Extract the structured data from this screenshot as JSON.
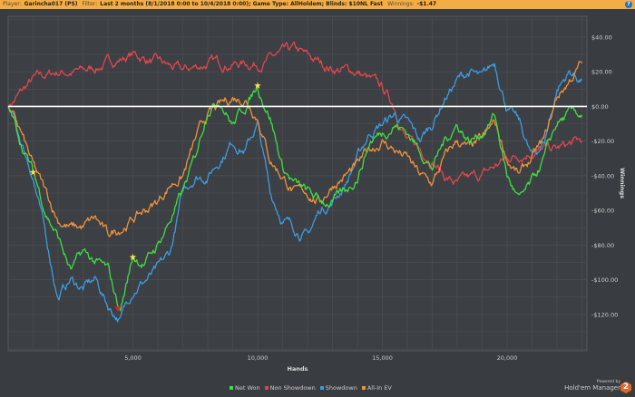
{
  "header": {
    "player_label": "Player:",
    "player": "Garincha017 (PS)",
    "filter_label": "Filter:",
    "filter": "Last 2 months (8/1/2018 0:00 to 10/4/2018 0:00); Game Type: AllHoldem; Blinds: $10NL Fast",
    "winnings_label": "Winnings:",
    "winnings": "-$1.47",
    "help": "?"
  },
  "brand": {
    "powered": "Powered by",
    "name": "Hold'em Manager",
    "logo": "2"
  },
  "chart_data": {
    "type": "line",
    "xlabel": "Hands",
    "ylabel": "Winnings",
    "xlim": [
      0,
      23200
    ],
    "ylim": [
      -141,
      52
    ],
    "xticks": [
      5000,
      10000,
      15000,
      20000
    ],
    "xtick_labels": [
      "5,000",
      "10,000",
      "15,000",
      "20,000"
    ],
    "yticks": [
      40,
      20,
      0,
      -20,
      -40,
      -60,
      -80,
      -100,
      -120
    ],
    "ytick_labels": [
      "$40.00",
      "$20.00",
      "$0.00",
      "-$20.00",
      "-$40.00",
      "-$60.00",
      "-$80.00",
      "-$100.00",
      "-$120.00"
    ],
    "grid": true,
    "legend_position": "bottom",
    "series": [
      {
        "name": "Non Showdown",
        "color": "#e0474c",
        "points": [
          [
            0,
            0
          ],
          [
            1000,
            15
          ],
          [
            2000,
            20
          ],
          [
            3000,
            20
          ],
          [
            4000,
            25
          ],
          [
            5000,
            30
          ],
          [
            6000,
            25
          ],
          [
            7000,
            20
          ],
          [
            8000,
            25
          ],
          [
            9000,
            25
          ],
          [
            10000,
            25
          ],
          [
            11000,
            30
          ],
          [
            11500,
            32
          ],
          [
            12000,
            28
          ],
          [
            12500,
            25
          ],
          [
            13000,
            22
          ],
          [
            14000,
            20
          ],
          [
            15000,
            10
          ],
          [
            15500,
            0
          ],
          [
            16000,
            -20
          ],
          [
            17000,
            -30
          ],
          [
            17500,
            -40
          ],
          [
            18000,
            -45
          ],
          [
            19000,
            -40
          ],
          [
            19500,
            -35
          ],
          [
            20000,
            -30
          ],
          [
            21000,
            -25
          ],
          [
            22000,
            -25
          ],
          [
            23000,
            -20
          ]
        ]
      },
      {
        "name": "Showdown",
        "color": "#3b9de0",
        "points": [
          [
            0,
            0
          ],
          [
            1000,
            -40
          ],
          [
            1500,
            -75
          ],
          [
            2000,
            -110
          ],
          [
            2500,
            -100
          ],
          [
            3000,
            -105
          ],
          [
            3500,
            -100
          ],
          [
            4000,
            -115
          ],
          [
            4500,
            -123
          ],
          [
            5000,
            -105
          ],
          [
            5500,
            -100
          ],
          [
            6000,
            -95
          ],
          [
            6500,
            -85
          ],
          [
            7000,
            -50
          ],
          [
            7500,
            -40
          ],
          [
            8000,
            -40
          ],
          [
            8500,
            -30
          ],
          [
            9000,
            -20
          ],
          [
            9500,
            -25
          ],
          [
            10000,
            -10
          ],
          [
            10500,
            -50
          ],
          [
            11000,
            -65
          ],
          [
            11500,
            -70
          ],
          [
            12000,
            -75
          ],
          [
            12500,
            -60
          ],
          [
            13000,
            -55
          ],
          [
            13500,
            -45
          ],
          [
            14000,
            -30
          ],
          [
            14500,
            -15
          ],
          [
            15000,
            -10
          ],
          [
            15500,
            -5
          ],
          [
            16000,
            -10
          ],
          [
            16500,
            -20
          ],
          [
            17000,
            -10
          ],
          [
            17500,
            5
          ],
          [
            18000,
            15
          ],
          [
            18500,
            20
          ],
          [
            19000,
            15
          ],
          [
            19500,
            25
          ],
          [
            20000,
            0
          ],
          [
            20500,
            -10
          ],
          [
            21000,
            -30
          ],
          [
            21500,
            -20
          ],
          [
            22000,
            10
          ],
          [
            22500,
            20
          ],
          [
            23000,
            15
          ]
        ]
      },
      {
        "name": "All-In EV",
        "color": "#f0923a",
        "points": [
          [
            0,
            0
          ],
          [
            500,
            -15
          ],
          [
            1000,
            -35
          ],
          [
            1500,
            -50
          ],
          [
            2000,
            -65
          ],
          [
            2500,
            -70
          ],
          [
            3000,
            -70
          ],
          [
            3500,
            -65
          ],
          [
            4000,
            -75
          ],
          [
            4500,
            -70
          ],
          [
            5000,
            -65
          ],
          [
            5500,
            -60
          ],
          [
            6000,
            -55
          ],
          [
            6500,
            -45
          ],
          [
            7000,
            -40
          ],
          [
            7500,
            -20
          ],
          [
            8000,
            -5
          ],
          [
            8500,
            0
          ],
          [
            9000,
            5
          ],
          [
            9500,
            5
          ],
          [
            10000,
            -5
          ],
          [
            10500,
            -30
          ],
          [
            11000,
            -40
          ],
          [
            11500,
            -50
          ],
          [
            12000,
            -50
          ],
          [
            12500,
            -55
          ],
          [
            13000,
            -45
          ],
          [
            13500,
            -40
          ],
          [
            14000,
            -35
          ],
          [
            14500,
            -25
          ],
          [
            15000,
            -20
          ],
          [
            15500,
            -25
          ],
          [
            16000,
            -30
          ],
          [
            16500,
            -40
          ],
          [
            17000,
            -45
          ],
          [
            17500,
            -30
          ],
          [
            18000,
            -20
          ],
          [
            18500,
            -25
          ],
          [
            19000,
            -20
          ],
          [
            19500,
            -10
          ],
          [
            20000,
            -30
          ],
          [
            20500,
            -40
          ],
          [
            21000,
            -30
          ],
          [
            21500,
            -20
          ],
          [
            22000,
            5
          ],
          [
            22500,
            15
          ],
          [
            23000,
            25
          ]
        ]
      },
      {
        "name": "Net Won",
        "color": "#3fe03f",
        "points": [
          [
            0,
            0
          ],
          [
            500,
            -20
          ],
          [
            1000,
            -38
          ],
          [
            1500,
            -60
          ],
          [
            2000,
            -75
          ],
          [
            2500,
            -95
          ],
          [
            3000,
            -85
          ],
          [
            3500,
            -90
          ],
          [
            4000,
            -95
          ],
          [
            4300,
            -110
          ],
          [
            4500,
            -117
          ],
          [
            5000,
            -87
          ],
          [
            5500,
            -90
          ],
          [
            6000,
            -80
          ],
          [
            6500,
            -65
          ],
          [
            7000,
            -50
          ],
          [
            7500,
            -30
          ],
          [
            8000,
            0
          ],
          [
            8500,
            5
          ],
          [
            9000,
            -10
          ],
          [
            9500,
            0
          ],
          [
            10000,
            12
          ],
          [
            10500,
            -5
          ],
          [
            11000,
            -35
          ],
          [
            11500,
            -45
          ],
          [
            12000,
            -50
          ],
          [
            12500,
            -55
          ],
          [
            13000,
            -55
          ],
          [
            13500,
            -50
          ],
          [
            14000,
            -40
          ],
          [
            14500,
            -20
          ],
          [
            15000,
            -15
          ],
          [
            15500,
            -10
          ],
          [
            16000,
            -15
          ],
          [
            16500,
            -25
          ],
          [
            17000,
            -35
          ],
          [
            17500,
            -20
          ],
          [
            18000,
            -10
          ],
          [
            18500,
            -20
          ],
          [
            19000,
            -15
          ],
          [
            19500,
            -5
          ],
          [
            20000,
            -40
          ],
          [
            20500,
            -55
          ],
          [
            21000,
            -45
          ],
          [
            21500,
            -30
          ],
          [
            22000,
            -10
          ],
          [
            22500,
            -5
          ],
          [
            23000,
            -5
          ]
        ]
      }
    ],
    "legend": [
      "Net Won",
      "Non Showdown",
      "Showdown",
      "All-In EV"
    ],
    "legend_colors": [
      "#3fe03f",
      "#e0474c",
      "#3b9de0",
      "#f0923a"
    ],
    "markers": [
      {
        "type": "star",
        "x": 1000,
        "y": -38
      },
      {
        "type": "star",
        "x": 5000,
        "y": -87
      },
      {
        "type": "star",
        "x": 10000,
        "y": 12
      },
      {
        "type": "triangle",
        "x": 4400,
        "y": -117
      }
    ]
  }
}
